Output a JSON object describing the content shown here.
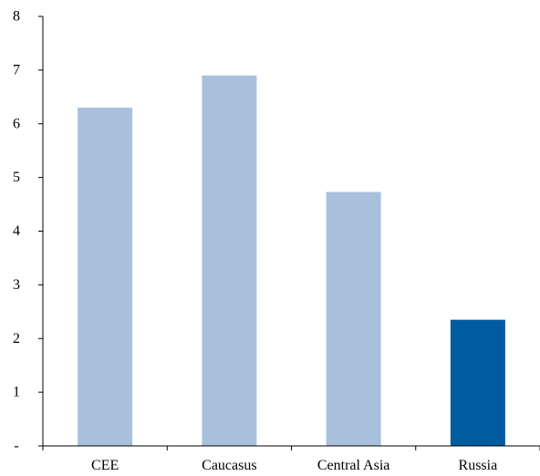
{
  "chart_data": {
    "type": "bar",
    "title": "",
    "xlabel": "",
    "ylabel": "",
    "categories": [
      "CEE",
      "Caucasus",
      "Central Asia",
      "Russia"
    ],
    "values": [
      6.3,
      6.9,
      4.73,
      2.35
    ],
    "bar_colors": [
      "#a9c0dc",
      "#a9c0dc",
      "#a9c0dc",
      "#005b9f"
    ],
    "ylim": [
      0,
      8
    ],
    "y_ticks": [
      0,
      1,
      2,
      3,
      4,
      5,
      6,
      7,
      8
    ],
    "y_tick_labels": [
      "-",
      "1",
      "2",
      "3",
      "4",
      "5",
      "6",
      "7",
      "8"
    ],
    "grid": false,
    "legend": "none"
  }
}
